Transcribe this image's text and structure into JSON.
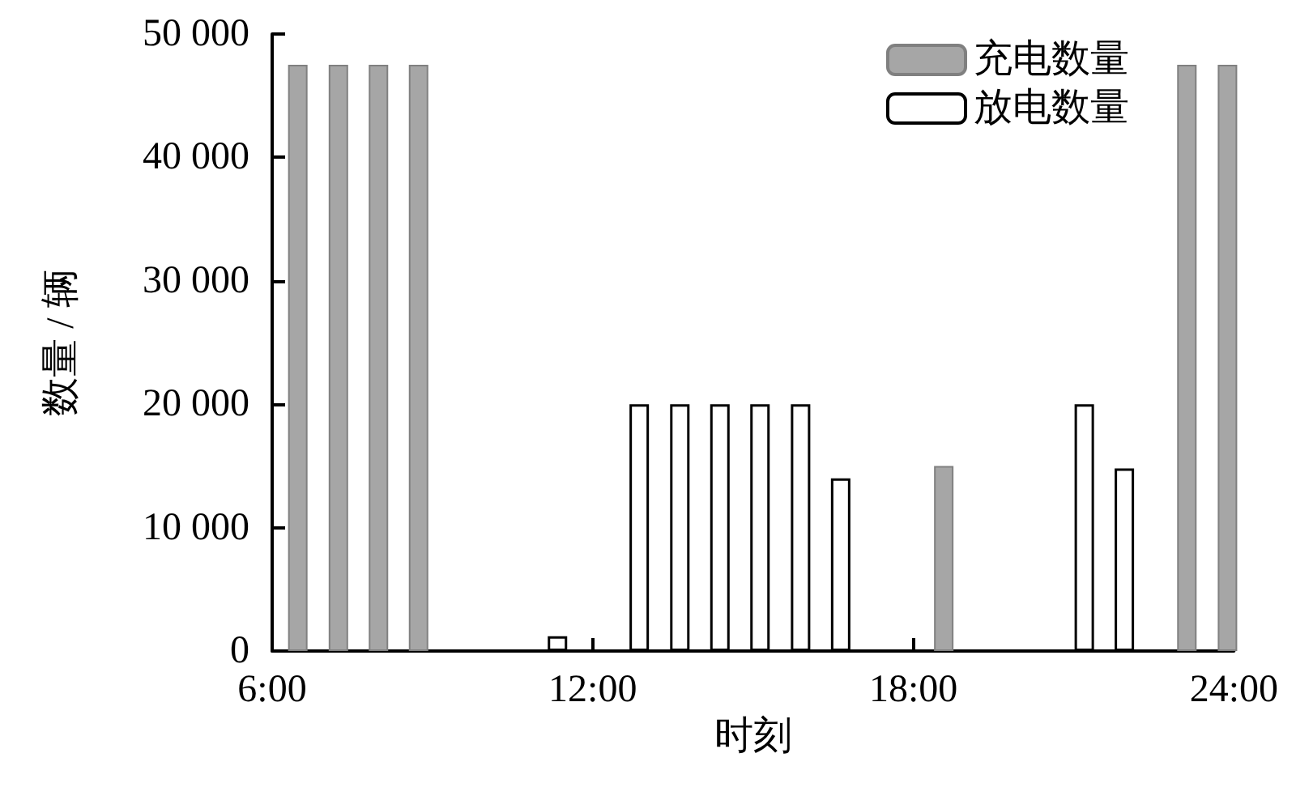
{
  "chart_data": {
    "type": "bar",
    "xlabel": "时刻",
    "ylabel": "数量 / 辆",
    "xlim": [
      6,
      24
    ],
    "xticks": [
      {
        "value": 6,
        "label": "6:00"
      },
      {
        "value": 12,
        "label": "12:00"
      },
      {
        "value": 18,
        "label": "18:00"
      },
      {
        "value": 24,
        "label": "24:00"
      }
    ],
    "ylim": [
      0,
      50000
    ],
    "yticks": [
      {
        "value": 0,
        "label": "0"
      },
      {
        "value": 10000,
        "label": "10 000"
      },
      {
        "value": 20000,
        "label": "20 000"
      },
      {
        "value": 30000,
        "label": "30 000"
      },
      {
        "value": 40000,
        "label": "40 000"
      },
      {
        "value": 50000,
        "label": "50 000"
      }
    ],
    "series": [
      {
        "name": "充电数量",
        "color": "#a6a6a6",
        "x": [
          6.48,
          7.24,
          7.99,
          8.74,
          18.57,
          23.12,
          23.88
        ],
        "values": [
          47500,
          47500,
          47500,
          47500,
          15000,
          47500,
          47500
        ]
      },
      {
        "name": "放电数量",
        "color": "#ffffff",
        "x": [
          11.34,
          12.87,
          13.63,
          14.38,
          15.13,
          15.89,
          16.64,
          21.2,
          21.95
        ],
        "values": [
          1200,
          20000,
          20000,
          20000,
          20000,
          20000,
          14000,
          20000,
          14800
        ]
      }
    ],
    "grid": false,
    "legend": "top right"
  }
}
